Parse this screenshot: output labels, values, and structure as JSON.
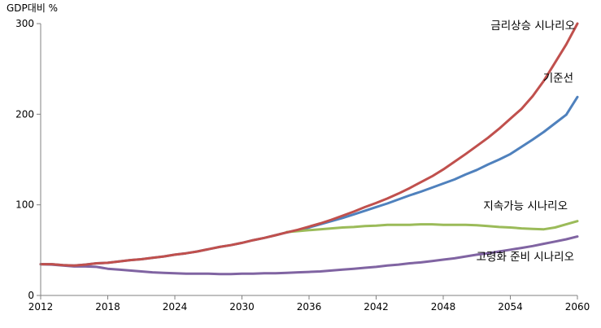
{
  "chart_data": {
    "type": "line",
    "title": "",
    "xlabel": "",
    "ylabel": "GDP대비 %",
    "xlim": [
      2012,
      2060
    ],
    "ylim": [
      0,
      300
    ],
    "grid": false,
    "legend": "inline-labels",
    "x_ticks": [
      2012,
      2018,
      2024,
      2030,
      2036,
      2042,
      2048,
      2054,
      2060
    ],
    "y_ticks": [
      0,
      100,
      200,
      300
    ],
    "series": [
      {
        "name": "금리상승 시나리오",
        "color": "#c0504d",
        "x": [
          2012,
          2013,
          2014,
          2015,
          2016,
          2017,
          2018,
          2019,
          2020,
          2021,
          2022,
          2023,
          2024,
          2025,
          2026,
          2027,
          2028,
          2029,
          2030,
          2031,
          2032,
          2033,
          2034,
          2035,
          2036,
          2037,
          2038,
          2039,
          2040,
          2041,
          2042,
          2043,
          2044,
          2045,
          2046,
          2047,
          2048,
          2049,
          2050,
          2051,
          2052,
          2053,
          2054,
          2055,
          2056,
          2057,
          2058,
          2059,
          2060
        ],
        "values": [
          34.5,
          34.5,
          33.5,
          33,
          34,
          35.5,
          36,
          37.5,
          39,
          40,
          41.5,
          43,
          45,
          46.5,
          48.5,
          51,
          53.5,
          55.5,
          58,
          61,
          63.5,
          66.5,
          69.5,
          72.5,
          76,
          79.5,
          83.5,
          88,
          92.5,
          97.5,
          102,
          107,
          112.5,
          118.5,
          125,
          131.5,
          139,
          147.5,
          156,
          165,
          174,
          184,
          195,
          206,
          220,
          237,
          257,
          277,
          300
        ]
      },
      {
        "name": "기준선",
        "color": "#4f81bd",
        "x": [
          2012,
          2013,
          2014,
          2015,
          2016,
          2017,
          2018,
          2019,
          2020,
          2021,
          2022,
          2023,
          2024,
          2025,
          2026,
          2027,
          2028,
          2029,
          2030,
          2031,
          2032,
          2033,
          2034,
          2035,
          2036,
          2037,
          2038,
          2039,
          2040,
          2041,
          2042,
          2043,
          2044,
          2045,
          2046,
          2047,
          2048,
          2049,
          2050,
          2051,
          2052,
          2053,
          2054,
          2055,
          2056,
          2057,
          2058,
          2059,
          2060
        ],
        "values": [
          34.5,
          34.5,
          33.5,
          33,
          34,
          35.5,
          36,
          37.5,
          39,
          40,
          41.5,
          43,
          45,
          46.5,
          48.5,
          51,
          53.5,
          55.5,
          58,
          61,
          63.5,
          66.5,
          69.5,
          72,
          75,
          78.5,
          82,
          85.5,
          89.5,
          93.5,
          97.5,
          101.5,
          106,
          110.5,
          114.5,
          119,
          123.5,
          128,
          133.5,
          138.5,
          144.5,
          150,
          156,
          164,
          172,
          180.5,
          190,
          199.5,
          219
        ]
      },
      {
        "name": "지속가능 시나리오",
        "color": "#9bbb59",
        "x": [
          2034,
          2035,
          2036,
          2037,
          2038,
          2039,
          2040,
          2041,
          2042,
          2043,
          2044,
          2045,
          2046,
          2047,
          2048,
          2049,
          2050,
          2051,
          2052,
          2053,
          2054,
          2055,
          2056,
          2057,
          2058,
          2059,
          2060
        ],
        "values": [
          70,
          71,
          72,
          73,
          74,
          75,
          75.5,
          76.5,
          77,
          78,
          78,
          78,
          78.5,
          78.5,
          78,
          78,
          78,
          77.5,
          76.5,
          75.5,
          75,
          74,
          73.5,
          73,
          75,
          78.5,
          82
        ]
      },
      {
        "name": "고령화 준비 시나리오",
        "color": "#8064a2",
        "x": [
          2012,
          2013,
          2014,
          2015,
          2016,
          2017,
          2018,
          2019,
          2020,
          2021,
          2022,
          2023,
          2024,
          2025,
          2026,
          2027,
          2028,
          2029,
          2030,
          2031,
          2032,
          2033,
          2034,
          2035,
          2036,
          2037,
          2038,
          2039,
          2040,
          2041,
          2042,
          2043,
          2044,
          2045,
          2046,
          2047,
          2048,
          2049,
          2050,
          2051,
          2052,
          2053,
          2054,
          2055,
          2056,
          2057,
          2058,
          2059,
          2060
        ],
        "values": [
          34.5,
          34,
          33,
          32,
          32,
          31.5,
          29.5,
          28.5,
          27.5,
          26.5,
          25.5,
          25,
          24.5,
          24,
          24,
          24,
          23.5,
          23.5,
          24,
          24,
          24.5,
          24.5,
          25,
          25.5,
          26,
          26.5,
          27.5,
          28.5,
          29.5,
          30.5,
          31.5,
          33,
          34,
          35.5,
          36.5,
          38,
          39.5,
          41,
          43,
          45,
          46.5,
          48.5,
          50.5,
          52.5,
          54.5,
          57,
          59.5,
          62,
          65
        ]
      }
    ],
    "annotations": [
      {
        "text": "금리상승 시나리오",
        "series": "금리상승 시나리오",
        "anchor_x": 2060,
        "anchor_y": 300
      },
      {
        "text": "기준선",
        "series": "기준선",
        "anchor_x": 2060,
        "anchor_y": 232
      },
      {
        "text": "지속가능 시나리오",
        "series": "지속가능 시나리오",
        "anchor_x": 2060,
        "anchor_y": 92
      },
      {
        "text": "고령화 준비 시나리오",
        "series": "고령화 준비 시나리오",
        "anchor_x": 2060,
        "anchor_y": 37
      }
    ]
  }
}
